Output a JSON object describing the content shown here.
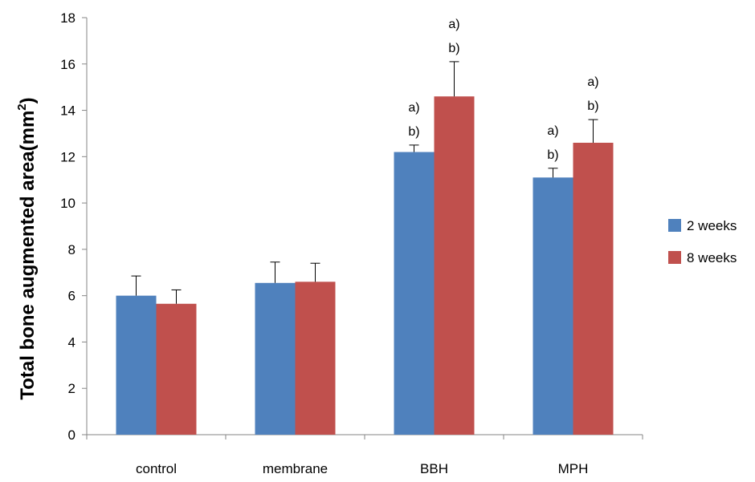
{
  "chart_data": {
    "type": "bar",
    "categories": [
      "control",
      "membrane",
      "BBH",
      "MPH"
    ],
    "series": [
      {
        "name": "2 weeks",
        "color": "#4f81bd",
        "values": [
          6.0,
          6.55,
          12.2,
          11.1
        ],
        "errors": [
          0.85,
          0.9,
          0.3,
          0.4
        ],
        "annotations": [
          [],
          [],
          [
            "a)",
            "b)"
          ],
          [
            "a)",
            "b)"
          ]
        ]
      },
      {
        "name": "8 weeks",
        "color": "#c0504d",
        "values": [
          5.65,
          6.6,
          14.6,
          12.6
        ],
        "errors": [
          0.6,
          0.8,
          1.5,
          1.0
        ],
        "annotations": [
          [],
          [],
          [
            "a)",
            "b)"
          ],
          [
            "a)",
            "b)"
          ]
        ]
      }
    ],
    "ylabel": "Total bone augmented area(mm",
    "ylabel_sup": "2",
    "ylabel_close": ")",
    "ylim": [
      0,
      18
    ],
    "yticks": [
      "0",
      "2",
      "4",
      "6",
      "8",
      "10",
      "12",
      "14",
      "16",
      "18"
    ],
    "grid": false,
    "legend_position": "right"
  }
}
